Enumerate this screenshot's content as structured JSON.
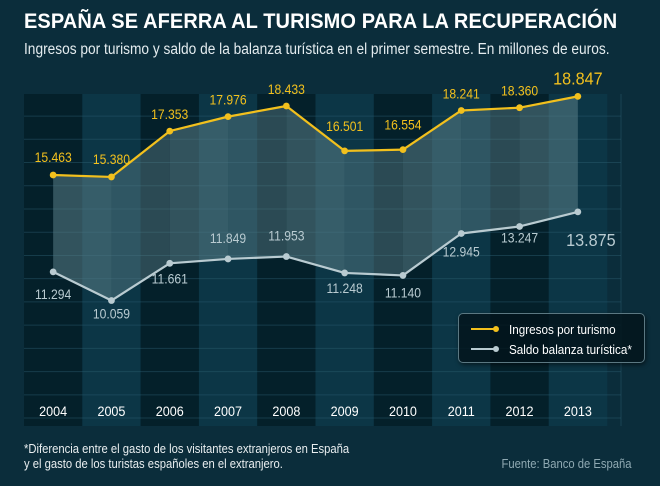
{
  "header": {
    "title": "ESPAÑA SE AFERRA AL TURISMO PARA LA RECUPERACIÓN",
    "subtitle": "Ingresos por turismo y saldo de la balanza turística en el primer semestre. En millones de euros."
  },
  "footer": {
    "footnote_line1": "*Diferencia entre el gasto de los visitantes extranjeros en España",
    "footnote_line2": "y el gasto de los turistas españoles en el extranjero.",
    "source": "Fuente: Banco de España"
  },
  "colors": {
    "background": "#0b2d3b",
    "ingresos": "#f2c01d",
    "saldo": "#b9cbd1",
    "column_dark": "#04202a",
    "column_light": "#0c3646",
    "band": "#5a7e87"
  },
  "chart_data": {
    "type": "line",
    "title": "ESPAÑA SE AFERRA AL TURISMO PARA LA RECUPERACIÓN",
    "subtitle": "Ingresos por turismo y saldo de la balanza turística en el primer semestre. En millones de euros.",
    "xlabel": "",
    "ylabel": "",
    "x": [
      "2004",
      "2005",
      "2006",
      "2007",
      "2008",
      "2009",
      "2010",
      "2011",
      "2012",
      "2013"
    ],
    "series": [
      {
        "name": "Ingresos por turismo",
        "color": "#f2c01d",
        "values": [
          15463,
          15380,
          17353,
          17976,
          18433,
          16501,
          16554,
          18241,
          18360,
          18847
        ],
        "labels": [
          "15.463",
          "15.380",
          "17.353",
          "17.976",
          "18.433",
          "16.501",
          "16.554",
          "18.241",
          "18.360",
          "18.847"
        ]
      },
      {
        "name": "Saldo balanza turística*",
        "color": "#b9cbd1",
        "values": [
          11294,
          10059,
          11661,
          11849,
          11953,
          11248,
          11140,
          12945,
          13247,
          13875
        ],
        "labels": [
          "11.294",
          "10.059",
          "11.661",
          "11.849",
          "11.953",
          "11.248",
          "11.140",
          "12.945",
          "13.247",
          "13.875"
        ]
      }
    ],
    "ylim": [
      5000,
      19500
    ],
    "grid": true,
    "legend": "bottom-right",
    "shaded_band_between_series": true
  }
}
